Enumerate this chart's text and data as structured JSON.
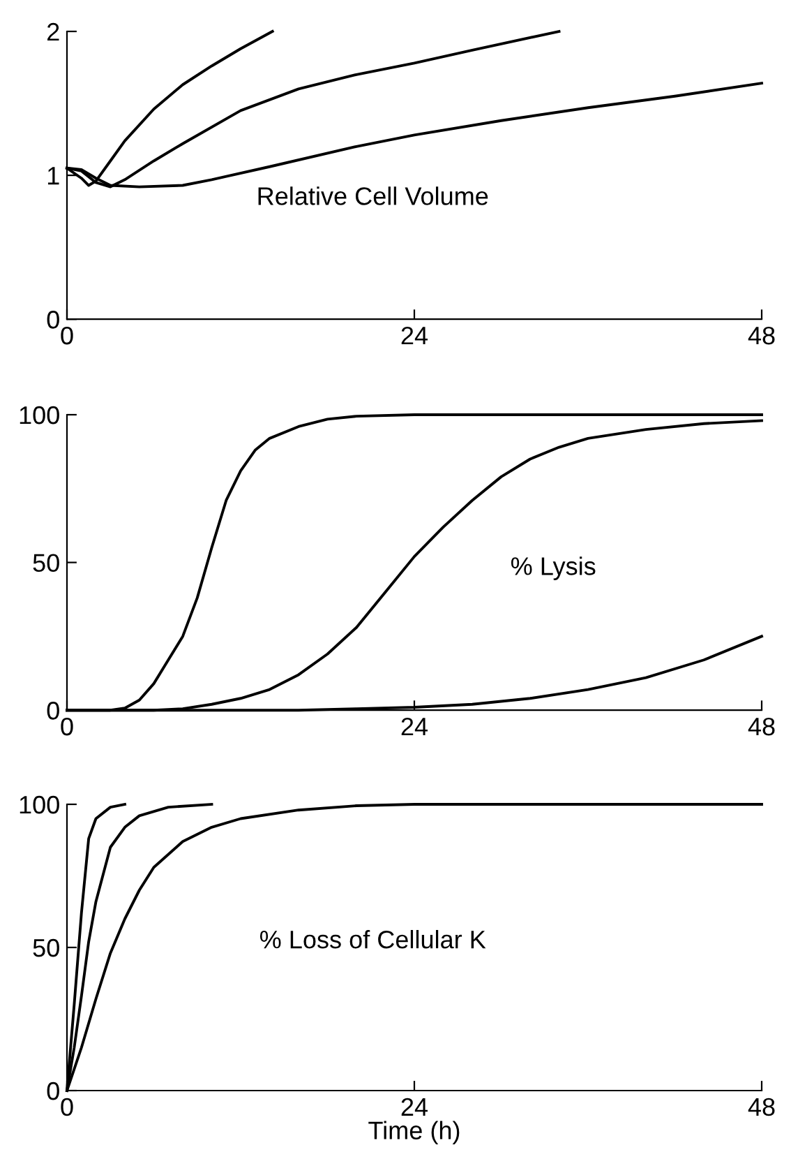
{
  "chart_data": [
    {
      "type": "line",
      "title": "Relative Cell Volume",
      "xlim": [
        0,
        48
      ],
      "ylim": [
        0,
        2
      ],
      "xticks": [
        0,
        24,
        48
      ],
      "yticks": [
        0,
        1,
        2
      ],
      "grid": false,
      "series": [
        {
          "color": "#000000",
          "x": [
            0,
            1,
            1.5,
            2,
            3,
            4,
            6,
            8,
            10,
            12,
            14.2
          ],
          "values": [
            1.05,
            0.98,
            0.93,
            0.96,
            1.1,
            1.24,
            1.46,
            1.63,
            1.76,
            1.88,
            2.0
          ]
        },
        {
          "color": "#000000",
          "x": [
            0,
            1,
            2,
            3,
            4,
            6,
            8,
            12,
            16,
            20,
            24,
            28,
            34
          ],
          "values": [
            1.05,
            1.03,
            0.95,
            0.92,
            0.97,
            1.1,
            1.22,
            1.45,
            1.6,
            1.7,
            1.78,
            1.87,
            2.0
          ]
        },
        {
          "color": "#000000",
          "x": [
            0,
            1,
            2,
            3,
            5,
            8,
            10,
            14,
            20,
            24,
            30,
            36,
            42,
            48
          ],
          "values": [
            1.05,
            1.04,
            0.98,
            0.93,
            0.92,
            0.93,
            0.97,
            1.06,
            1.2,
            1.28,
            1.38,
            1.47,
            1.55,
            1.64
          ]
        }
      ]
    },
    {
      "type": "line",
      "title": "% Lysis",
      "xlim": [
        0,
        48
      ],
      "ylim": [
        0,
        100
      ],
      "xticks": [
        0,
        24,
        48
      ],
      "yticks": [
        0,
        50,
        100
      ],
      "grid": false,
      "series": [
        {
          "color": "#000000",
          "x": [
            0,
            3,
            4,
            5,
            6,
            7,
            8,
            9,
            10,
            11,
            12,
            13,
            14,
            16,
            18,
            20,
            24,
            48
          ],
          "values": [
            0,
            0,
            0.7,
            3.4,
            9,
            17,
            25,
            38,
            55,
            71,
            81,
            88,
            92,
            96,
            98.5,
            99.5,
            100,
            100
          ]
        },
        {
          "color": "#000000",
          "x": [
            0,
            6,
            8,
            10,
            12,
            14,
            16,
            18,
            20,
            22,
            24,
            26,
            28,
            30,
            32,
            34,
            36,
            40,
            44,
            48
          ],
          "values": [
            0,
            0,
            0.5,
            2,
            4,
            7,
            12,
            19,
            28,
            40,
            52,
            62,
            71,
            79,
            85,
            89,
            92,
            95,
            97,
            98
          ]
        },
        {
          "color": "#000000",
          "x": [
            0,
            16,
            20,
            24,
            28,
            32,
            36,
            40,
            44,
            48
          ],
          "values": [
            0,
            0,
            0.5,
            1,
            2,
            4,
            7,
            11,
            17,
            25
          ]
        }
      ]
    },
    {
      "type": "line",
      "title": "% Loss of Cellular K",
      "xlabel": "Time (h)",
      "xlim": [
        0,
        48
      ],
      "ylim": [
        0,
        100
      ],
      "xticks": [
        0,
        24,
        48
      ],
      "yticks": [
        0,
        50,
        100
      ],
      "grid": false,
      "series": [
        {
          "color": "#000000",
          "x": [
            0,
            0.5,
            1,
            1.5,
            2,
            3,
            4
          ],
          "values": [
            0,
            30,
            62,
            88,
            95,
            99,
            100
          ]
        },
        {
          "color": "#000000",
          "x": [
            0,
            0.5,
            1,
            1.5,
            2,
            3,
            4,
            5,
            7,
            10
          ],
          "values": [
            0,
            15,
            33,
            52,
            66,
            85,
            92,
            96,
            99,
            100
          ]
        },
        {
          "color": "#000000",
          "x": [
            0,
            1,
            2,
            3,
            4,
            5,
            6,
            8,
            10,
            12,
            16,
            20,
            24,
            48
          ],
          "values": [
            0,
            15,
            32,
            48,
            60,
            70,
            78,
            87,
            92,
            95,
            98,
            99.5,
            100,
            100
          ]
        }
      ]
    }
  ]
}
